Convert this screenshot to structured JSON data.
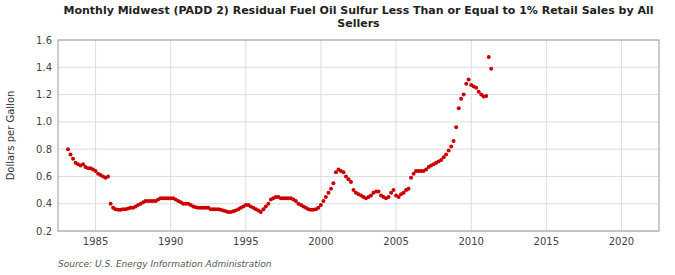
{
  "chart_data": {
    "type": "scatter",
    "title": "Monthly Midwest (PADD 2) Residual Fuel Oil Sulfur Less Than or Equal to 1% Retail Sales by All\nSellers",
    "ylabel": "Dollars per Gallon",
    "annotations": [
      "Source: U.S. Energy Information Administration"
    ],
    "color": "#cc0000",
    "grid": true,
    "xlim": [
      1982.5,
      2022.5
    ],
    "ylim": [
      0.2,
      1.6
    ],
    "xticks": [
      1985,
      1990,
      1995,
      2000,
      2005,
      2010,
      2015,
      2020
    ],
    "yticks": [
      0.2,
      0.4,
      0.6,
      0.8,
      {
        "value": 1.0,
        "label": "1.0"
      },
      1.2,
      1.4,
      1.6
    ],
    "x": [
      1983.17,
      1983.33,
      1983.5,
      1983.67,
      1983.83,
      1984.0,
      1984.17,
      1984.33,
      1984.5,
      1984.67,
      1984.83,
      1985.0,
      1985.17,
      1985.33,
      1985.5,
      1985.67,
      1985.83,
      1986.0,
      1986.17,
      1986.33,
      1986.5,
      1986.67,
      1986.83,
      1987.0,
      1987.17,
      1987.33,
      1987.5,
      1987.67,
      1987.83,
      1988.0,
      1988.17,
      1988.33,
      1988.5,
      1988.67,
      1988.83,
      1989.0,
      1989.17,
      1989.33,
      1989.5,
      1989.67,
      1989.83,
      1990.0,
      1990.17,
      1990.33,
      1990.5,
      1990.67,
      1990.83,
      1991.0,
      1991.17,
      1991.33,
      1991.5,
      1991.67,
      1991.83,
      1992.0,
      1992.17,
      1992.33,
      1992.5,
      1992.67,
      1992.83,
      1993.0,
      1993.17,
      1993.33,
      1993.5,
      1993.67,
      1993.83,
      1994.0,
      1994.17,
      1994.33,
      1994.5,
      1994.67,
      1994.83,
      1995.0,
      1995.17,
      1995.33,
      1995.5,
      1995.67,
      1995.83,
      1996.0,
      1996.17,
      1996.33,
      1996.5,
      1996.67,
      1996.83,
      1997.0,
      1997.17,
      1997.33,
      1997.5,
      1997.67,
      1997.83,
      1998.0,
      1998.17,
      1998.33,
      1998.5,
      1998.67,
      1998.83,
      1999.0,
      1999.17,
      1999.33,
      1999.5,
      1999.67,
      1999.83,
      2000.0,
      2000.17,
      2000.33,
      2000.5,
      2000.67,
      2000.83,
      2001.0,
      2001.17,
      2001.33,
      2001.5,
      2001.67,
      2001.83,
      2002.0,
      2002.17,
      2002.33,
      2002.5,
      2002.67,
      2002.83,
      2003.0,
      2003.17,
      2003.33,
      2003.5,
      2003.67,
      2003.83,
      2004.0,
      2004.17,
      2004.33,
      2004.5,
      2004.67,
      2004.83,
      2005.0,
      2005.17,
      2005.33,
      2005.5,
      2005.67,
      2005.83,
      2006.0,
      2006.17,
      2006.33,
      2006.5,
      2006.67,
      2006.83,
      2007.0,
      2007.17,
      2007.33,
      2007.5,
      2007.67,
      2007.83,
      2008.0,
      2008.17,
      2008.33,
      2008.5,
      2008.67,
      2008.83,
      2009.0,
      2009.17,
      2009.33,
      2009.5,
      2009.67,
      2009.83,
      2010.0,
      2010.17,
      2010.33,
      2010.5,
      2010.67,
      2010.83,
      2011.0,
      2011.17,
      2011.33
    ],
    "values": [
      0.8,
      0.76,
      0.73,
      0.7,
      0.69,
      0.68,
      0.69,
      0.67,
      0.66,
      0.66,
      0.65,
      0.64,
      0.62,
      0.61,
      0.6,
      0.59,
      0.6,
      0.4,
      0.37,
      0.36,
      0.355,
      0.355,
      0.36,
      0.36,
      0.365,
      0.37,
      0.37,
      0.38,
      0.39,
      0.4,
      0.41,
      0.42,
      0.42,
      0.42,
      0.42,
      0.42,
      0.43,
      0.44,
      0.44,
      0.44,
      0.44,
      0.44,
      0.44,
      0.43,
      0.42,
      0.41,
      0.4,
      0.4,
      0.4,
      0.39,
      0.38,
      0.375,
      0.37,
      0.37,
      0.37,
      0.37,
      0.37,
      0.36,
      0.36,
      0.36,
      0.36,
      0.355,
      0.35,
      0.345,
      0.34,
      0.34,
      0.345,
      0.35,
      0.36,
      0.37,
      0.38,
      0.39,
      0.39,
      0.38,
      0.37,
      0.36,
      0.35,
      0.34,
      0.36,
      0.38,
      0.4,
      0.43,
      0.44,
      0.45,
      0.45,
      0.44,
      0.44,
      0.44,
      0.44,
      0.44,
      0.43,
      0.42,
      0.4,
      0.39,
      0.38,
      0.37,
      0.36,
      0.355,
      0.355,
      0.36,
      0.37,
      0.39,
      0.42,
      0.45,
      0.48,
      0.51,
      0.55,
      0.63,
      0.65,
      0.64,
      0.63,
      0.6,
      0.58,
      0.56,
      0.5,
      0.48,
      0.47,
      0.46,
      0.45,
      0.44,
      0.45,
      0.46,
      0.48,
      0.49,
      0.49,
      0.46,
      0.45,
      0.44,
      0.45,
      0.48,
      0.5,
      0.46,
      0.45,
      0.47,
      0.48,
      0.5,
      0.51,
      0.59,
      0.62,
      0.64,
      0.64,
      0.64,
      0.64,
      0.65,
      0.67,
      0.68,
      0.69,
      0.7,
      0.71,
      0.72,
      0.74,
      0.76,
      0.79,
      0.82,
      0.86,
      0.96,
      1.1,
      1.17,
      1.2,
      1.28,
      1.31,
      1.27,
      1.26,
      1.25,
      1.22,
      1.2,
      1.185,
      1.19,
      1.475,
      1.39
    ]
  }
}
